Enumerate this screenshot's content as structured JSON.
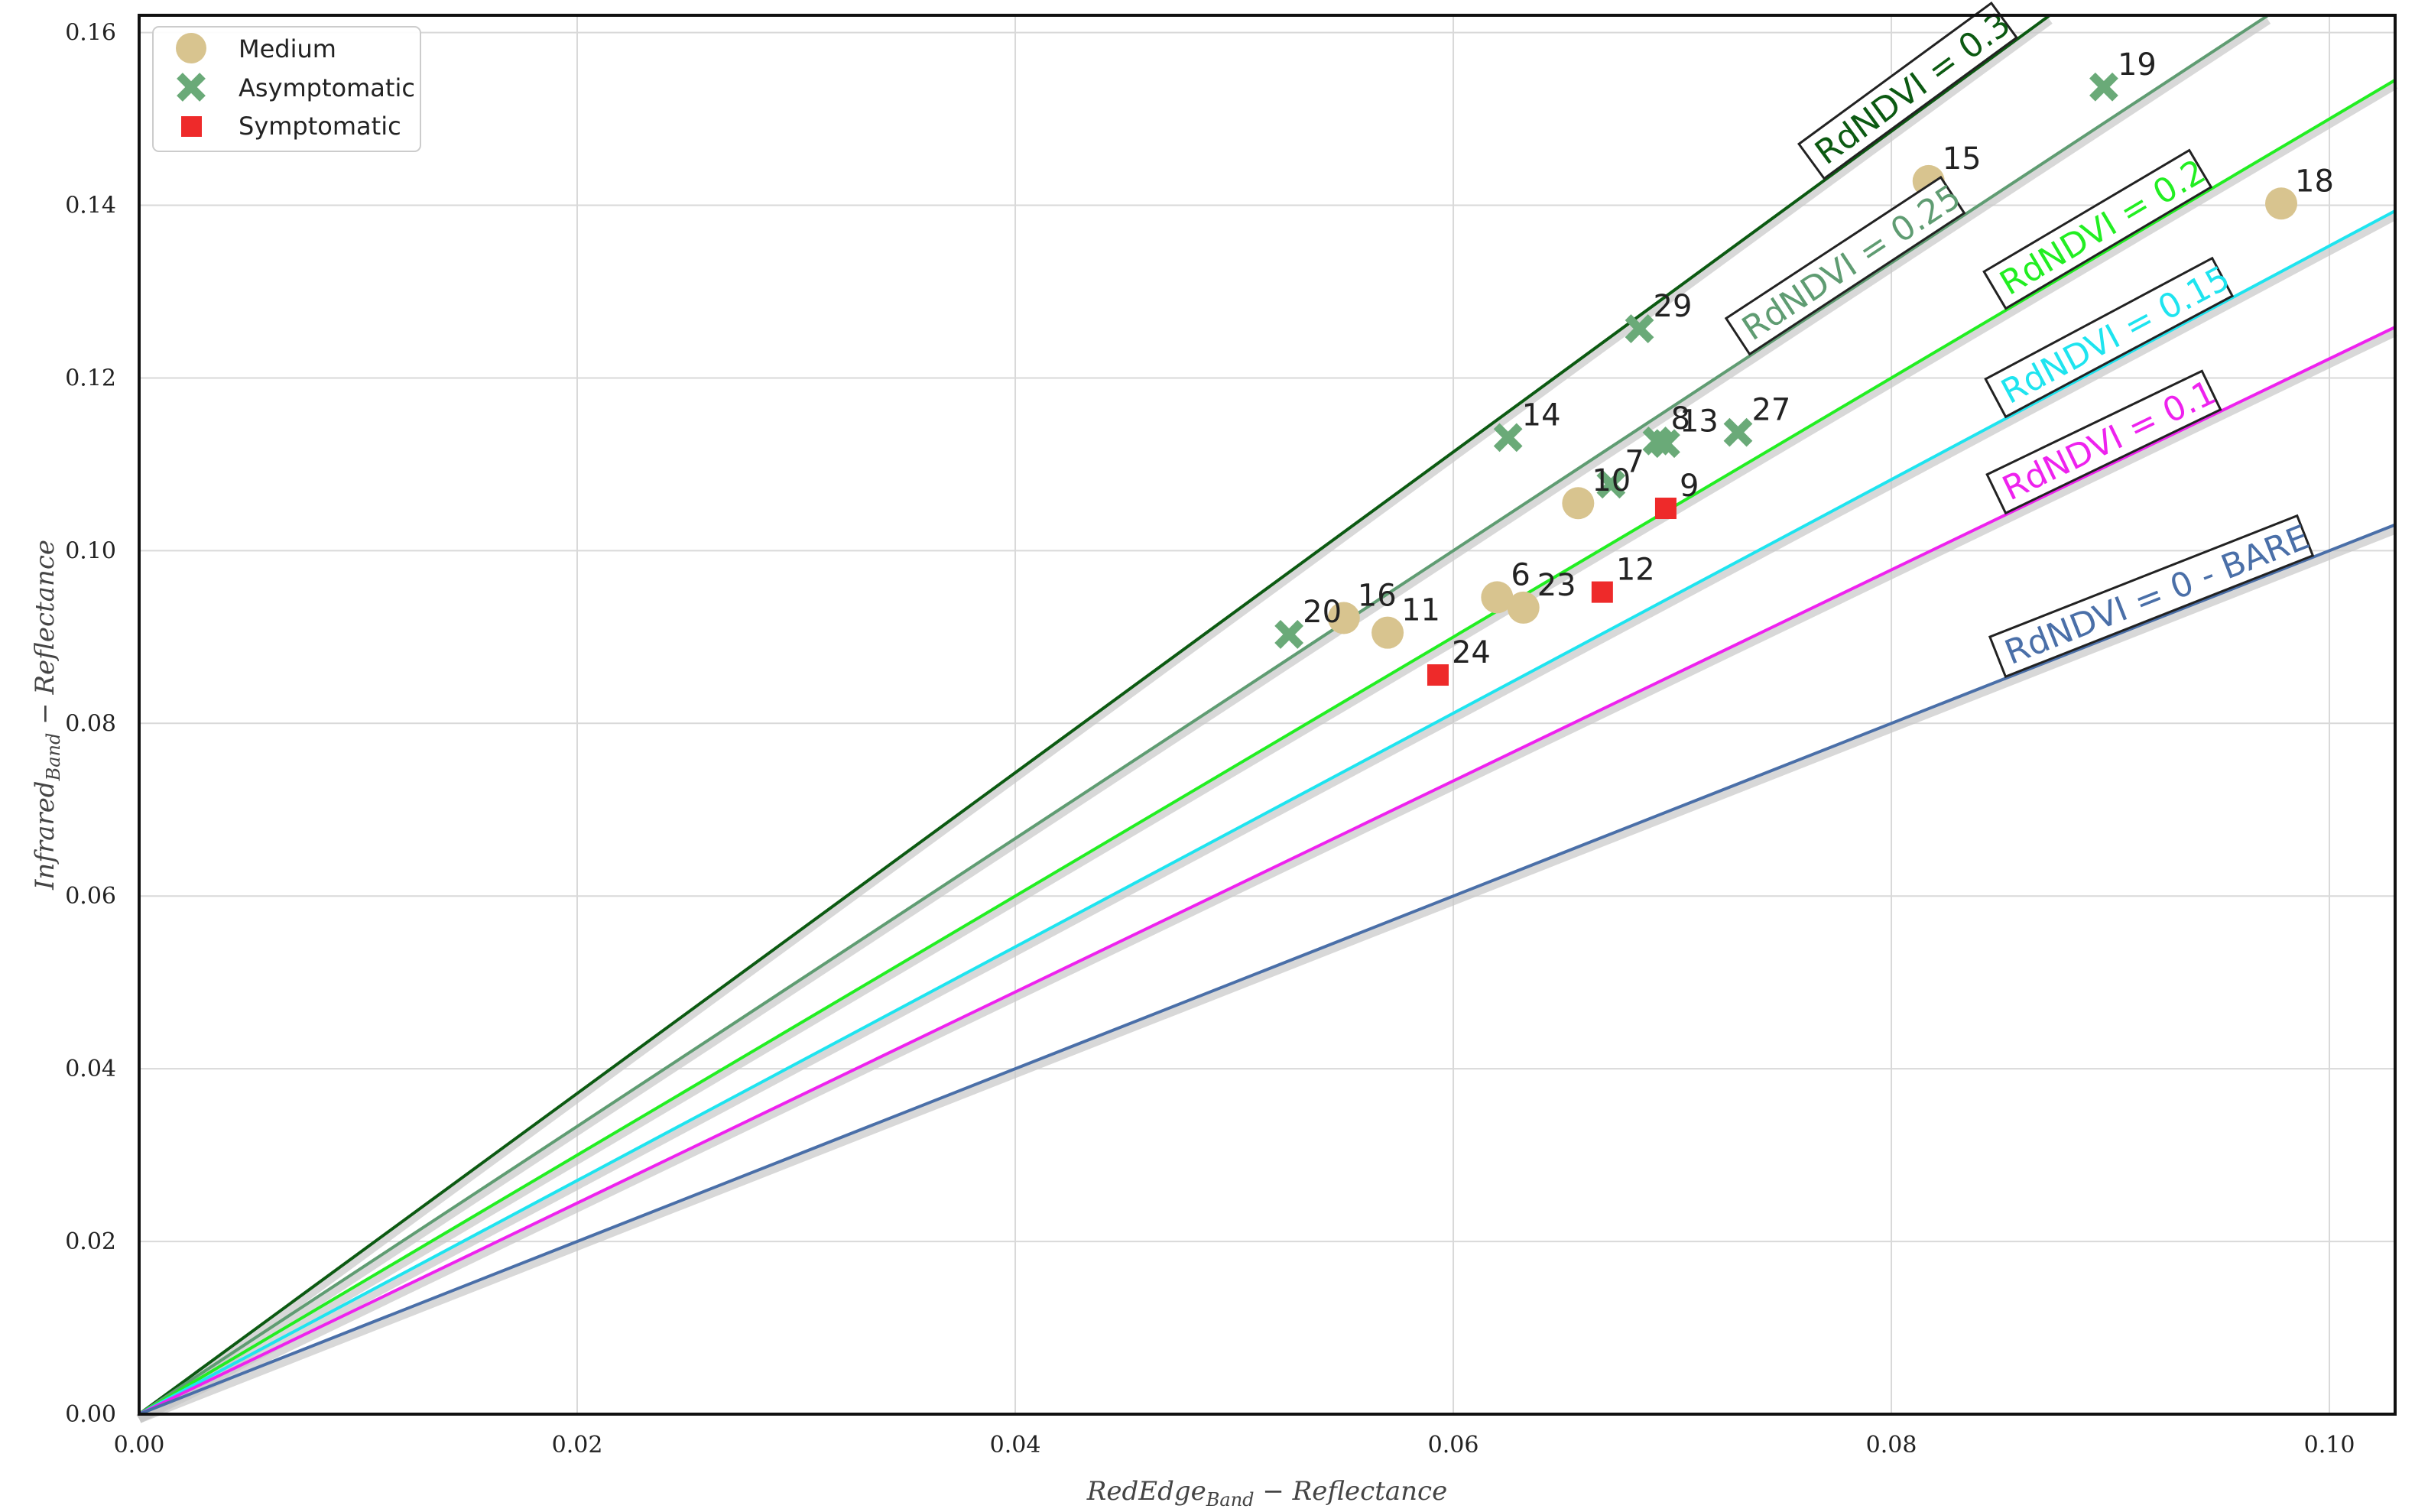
{
  "chart_data": {
    "type": "scatter",
    "xlabel_main": "RedEdge",
    "xlabel_sub": "Band",
    "xlabel_rest": " − Reflectance",
    "ylabel_main": "Infrared",
    "ylabel_sub": "Band",
    "ylabel_rest": " − Reflectance",
    "xlim": [
      0,
      0.103
    ],
    "ylim": [
      0,
      0.162
    ],
    "xticks": [
      0.0,
      0.02,
      0.04,
      0.06,
      0.08,
      0.1
    ],
    "xtick_labels": [
      "0.00",
      "0.02",
      "0.04",
      "0.06",
      "0.08",
      "0.10"
    ],
    "yticks": [
      0.0,
      0.02,
      0.04,
      0.06,
      0.08,
      0.1,
      0.12,
      0.14,
      0.16
    ],
    "ytick_labels": [
      "0.00",
      "0.02",
      "0.04",
      "0.06",
      "0.08",
      "0.10",
      "0.12",
      "0.14",
      "0.16"
    ],
    "grid": true,
    "legend_position": "top-left",
    "legend": [
      {
        "name": "Medium",
        "marker": "circle",
        "color": "#d8c48f"
      },
      {
        "name": "Asymptomatic",
        "marker": "x",
        "color": "#6aaa78"
      },
      {
        "name": "Symptomatic",
        "marker": "square",
        "color": "#ee2a2a"
      }
    ],
    "series": [
      {
        "name": "Medium",
        "marker": "circle",
        "color": "#d8c48f",
        "points": [
          {
            "label": "15",
            "x": 0.0817,
            "y": 0.1428
          },
          {
            "label": "18",
            "x": 0.0978,
            "y": 0.1402
          },
          {
            "label": "10",
            "x": 0.0657,
            "y": 0.1055
          },
          {
            "label": "6",
            "x": 0.062,
            "y": 0.0946
          },
          {
            "label": "23",
            "x": 0.0632,
            "y": 0.0934
          },
          {
            "label": "16",
            "x": 0.055,
            "y": 0.0922
          },
          {
            "label": "11",
            "x": 0.057,
            "y": 0.0905
          }
        ]
      },
      {
        "name": "Asymptomatic",
        "marker": "x",
        "color": "#6aaa78",
        "points": [
          {
            "label": "19",
            "x": 0.0897,
            "y": 0.1537
          },
          {
            "label": "29",
            "x": 0.0685,
            "y": 0.1257
          },
          {
            "label": "14",
            "x": 0.0625,
            "y": 0.1131
          },
          {
            "label": "27",
            "x": 0.073,
            "y": 0.1137
          },
          {
            "label": "8",
            "x": 0.0693,
            "y": 0.1127
          },
          {
            "label": "13",
            "x": 0.0697,
            "y": 0.1124
          },
          {
            "label": "7",
            "x": 0.0672,
            "y": 0.1077
          },
          {
            "label": "20",
            "x": 0.0525,
            "y": 0.0903
          }
        ]
      },
      {
        "name": "Symptomatic",
        "marker": "square",
        "color": "#ee2a2a",
        "points": [
          {
            "label": "9",
            "x": 0.0697,
            "y": 0.1049
          },
          {
            "label": "12",
            "x": 0.0668,
            "y": 0.0952
          },
          {
            "label": "24",
            "x": 0.0593,
            "y": 0.0856
          }
        ]
      }
    ],
    "reference_lines": [
      {
        "label": "RdNDVI = 0.3",
        "value": 0.3,
        "color": "#0c5a12",
        "label_at_x": 0.0772
      },
      {
        "label": "RdNDVI = 0.25",
        "value": 0.25,
        "color": "#5f9c72",
        "label_at_x": 0.0738
      },
      {
        "label": "RdNDVI = 0.2",
        "value": 0.2,
        "color": "#22ee22",
        "label_at_x": 0.0855
      },
      {
        "label": "RdNDVI = 0.15",
        "value": 0.15,
        "color": "#1ee4ef",
        "label_at_x": 0.0855
      },
      {
        "label": "RdNDVI = 0.1",
        "value": 0.1,
        "color": "#ee22ee",
        "label_at_x": 0.0855
      },
      {
        "label": "RdNDVI = 0 - BARE",
        "value": 0.0,
        "color": "#4a6fa8",
        "label_at_x": 0.0855
      }
    ]
  }
}
